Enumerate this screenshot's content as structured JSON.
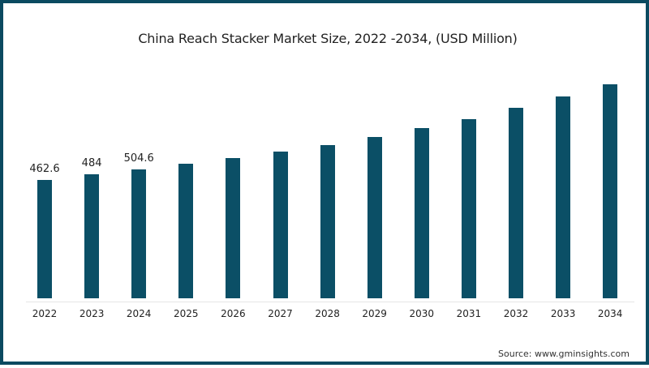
{
  "title": "China Reach Stacker Market Size, 2022 -2034, (USD Million)",
  "source": "Source: www.gminsights.com",
  "colors": {
    "bar": "#0b4f66",
    "border": "#0b4a60",
    "text": "#222222"
  },
  "chart_data": {
    "type": "bar",
    "title": "China Reach Stacker Market Size, 2022 -2034, (USD Million)",
    "xlabel": "",
    "ylabel": "USD Million",
    "categories": [
      "2022",
      "2023",
      "2024",
      "2025",
      "2026",
      "2027",
      "2028",
      "2029",
      "2030",
      "2031",
      "2032",
      "2033",
      "2034"
    ],
    "values": [
      462.6,
      484,
      504.6,
      526,
      548,
      573,
      600,
      630,
      665,
      700,
      743,
      789,
      836
    ],
    "data_labels": [
      "462.6",
      "484",
      "504.6",
      "",
      "",
      "",
      "",
      "",
      "",
      "",
      "",
      "",
      ""
    ],
    "ylim": [
      0,
      900
    ],
    "grid": false,
    "legend": "none",
    "annotations": [
      "Source: www.gminsights.com"
    ]
  }
}
